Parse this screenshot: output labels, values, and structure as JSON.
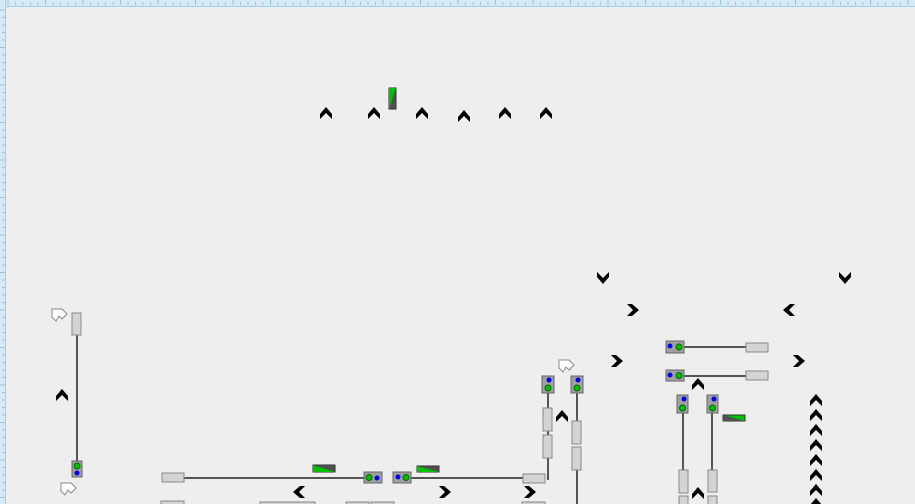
{
  "colors": {
    "background": "#eeeeee",
    "ruler": "#d6e9f5",
    "ruler_edge": "#9fd0ee",
    "signal_green": "#00c000",
    "signal_blue": "#0000ee",
    "signal_housing": "#a0a0a0",
    "block": "#d4d4d4",
    "indicator_dark": "#505050",
    "track": "#222222",
    "chevron": "#000000"
  },
  "icons": {
    "chevron": "chevron-icon",
    "route_arrow": "route-arrow-icon",
    "signal": "signal-icon",
    "indicator": "indicator-icon"
  }
}
